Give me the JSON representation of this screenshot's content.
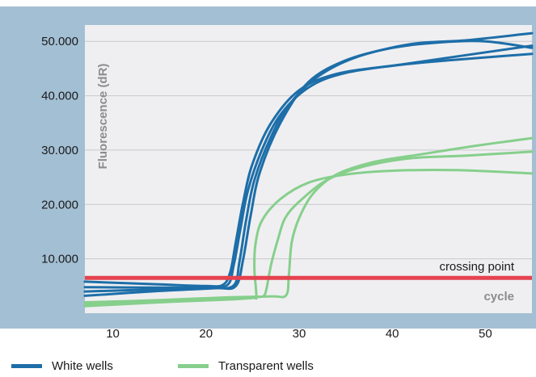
{
  "colors": {
    "frame": "#a3bfd4",
    "plot_bg": "#efeff1",
    "grid": "#c9c9cc",
    "white_wells": "#1d6ea8",
    "transparent_wells": "#86cf8c",
    "threshold": "#e5424f"
  },
  "chart_data": {
    "type": "line",
    "title": "",
    "xlabel": "",
    "ylabel": "Fluorescence (dR)",
    "xlim": [
      7,
      55
    ],
    "ylim": [
      0,
      53000
    ],
    "x_ticks": [
      10,
      20,
      30,
      40,
      50
    ],
    "x_tick_labels": [
      "10",
      "20",
      "30",
      "40",
      "50"
    ],
    "y_ticks": [
      10000,
      20000,
      30000,
      40000,
      50000
    ],
    "y_tick_labels": [
      "10.000",
      "20.000",
      "30.000",
      "40.000",
      "50.000"
    ],
    "grid": "horizontal",
    "legend_position": "bottom",
    "threshold": {
      "label": "crossing point",
      "y": 6500
    },
    "x_axis_annotation": "cycle",
    "series": [
      {
        "name": "White wells",
        "group": "white",
        "curves": [
          [
            [
              7,
              5800
            ],
            [
              15,
              5300
            ],
            [
              20,
              5000
            ],
            [
              21.8,
              5200
            ],
            [
              22.6,
              7500
            ],
            [
              23.2,
              13000
            ],
            [
              24,
              20500
            ],
            [
              25,
              27500
            ],
            [
              27,
              35000
            ],
            [
              30,
              41000
            ],
            [
              34,
              44000
            ],
            [
              40,
              45500
            ],
            [
              46,
              46500
            ],
            [
              55,
              47700
            ]
          ],
          [
            [
              7,
              4800
            ],
            [
              15,
              4700
            ],
            [
              20,
              4800
            ],
            [
              22.3,
              5200
            ],
            [
              23,
              9000
            ],
            [
              23.7,
              15500
            ],
            [
              24.5,
              22500
            ],
            [
              26,
              30000
            ],
            [
              28,
              36500
            ],
            [
              31,
              41500
            ],
            [
              35,
              44200
            ],
            [
              42,
              46000
            ],
            [
              55,
              49200
            ]
          ],
          [
            [
              7,
              4000
            ],
            [
              15,
              4400
            ],
            [
              20,
              4700
            ],
            [
              22.9,
              5000
            ],
            [
              23.6,
              9500
            ],
            [
              24.3,
              17000
            ],
            [
              25.2,
              24500
            ],
            [
              27,
              32500
            ],
            [
              29,
              38500
            ],
            [
              32,
              43500
            ],
            [
              36,
              47000
            ],
            [
              42,
              49500
            ],
            [
              48,
              50200
            ],
            [
              55,
              51500
            ]
          ],
          [
            [
              7,
              3200
            ],
            [
              15,
              4100
            ],
            [
              21,
              4600
            ],
            [
              23.2,
              5000
            ],
            [
              24,
              10000
            ],
            [
              24.8,
              18000
            ],
            [
              25.8,
              26000
            ],
            [
              28,
              35000
            ],
            [
              31,
              42500
            ],
            [
              35,
              46500
            ],
            [
              40,
              48800
            ],
            [
              45,
              49800
            ],
            [
              50,
              50000
            ],
            [
              55,
              48800
            ]
          ]
        ]
      },
      {
        "name": "Transparent wells",
        "group": "transparent",
        "curves": [
          [
            [
              7,
              1300
            ],
            [
              15,
              2000
            ],
            [
              22,
              2500
            ],
            [
              25,
              2800
            ],
            [
              25.4,
              3200
            ],
            [
              25.2,
              8000
            ],
            [
              25.3,
              12500
            ],
            [
              26,
              17000
            ],
            [
              28,
              21000
            ],
            [
              31,
              24000
            ],
            [
              35,
              25500
            ],
            [
              40,
              26200
            ],
            [
              47,
              26300
            ],
            [
              55,
              25700
            ]
          ],
          [
            [
              7,
              1600
            ],
            [
              15,
              2200
            ],
            [
              22,
              2800
            ],
            [
              25.5,
              3000
            ],
            [
              26.2,
              3200
            ],
            [
              26.5,
              4500
            ],
            [
              27,
              9000
            ],
            [
              27.8,
              14000
            ],
            [
              28.5,
              17500
            ],
            [
              30,
              20500
            ],
            [
              33,
              24500
            ],
            [
              37,
              27000
            ],
            [
              42,
              28500
            ],
            [
              48,
              29000
            ],
            [
              55,
              29700
            ]
          ],
          [
            [
              7,
              2000
            ],
            [
              15,
              2400
            ],
            [
              22,
              2900
            ],
            [
              27,
              3100
            ],
            [
              28.6,
              3300
            ],
            [
              28.9,
              7000
            ],
            [
              29.2,
              13000
            ],
            [
              30,
              17500
            ],
            [
              31.5,
              22000
            ],
            [
              34,
              25500
            ],
            [
              38,
              27800
            ],
            [
              43,
              29200
            ],
            [
              49,
              30800
            ],
            [
              55,
              32200
            ]
          ]
        ]
      }
    ]
  }
}
